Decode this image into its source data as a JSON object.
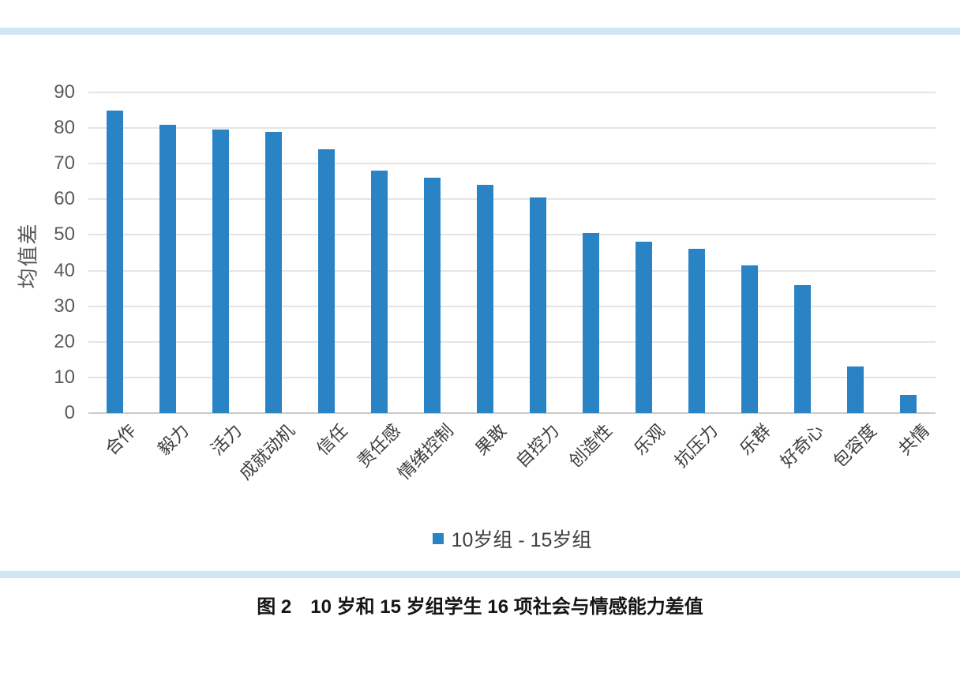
{
  "page": {
    "top_strip_color": "#cfe7f4",
    "bottom_strip_color": "#cfe7f4",
    "background_color": "#ffffff"
  },
  "chart_data": {
    "type": "bar",
    "title": "",
    "xlabel": "",
    "ylabel": "均值差",
    "ylim": [
      0,
      90
    ],
    "yticks": [
      0,
      10,
      20,
      30,
      40,
      50,
      60,
      70,
      80,
      90
    ],
    "grid": true,
    "gridline_color": "#e4e4e4",
    "axis_line_color": "#cccccc",
    "bar_color": "#2a83c5",
    "categories": [
      "合作",
      "毅力",
      "活力",
      "成就动机",
      "信任",
      "责任感",
      "情绪控制",
      "果敢",
      "自控力",
      "创造性",
      "乐观",
      "抗压力",
      "乐群",
      "好奇心",
      "包容度",
      "共情"
    ],
    "values": [
      85,
      81,
      79.5,
      79,
      74,
      68,
      66,
      64,
      60.5,
      50.5,
      48,
      46,
      41.5,
      36,
      13,
      5
    ],
    "legend": {
      "position": "bottom",
      "items": [
        {
          "label": "10岁组 - 15岁组",
          "color": "#2a83c5"
        }
      ]
    }
  },
  "caption": {
    "text": "图 2　10 岁和 15 岁组学生 16 项社会与情感能力差值"
  }
}
